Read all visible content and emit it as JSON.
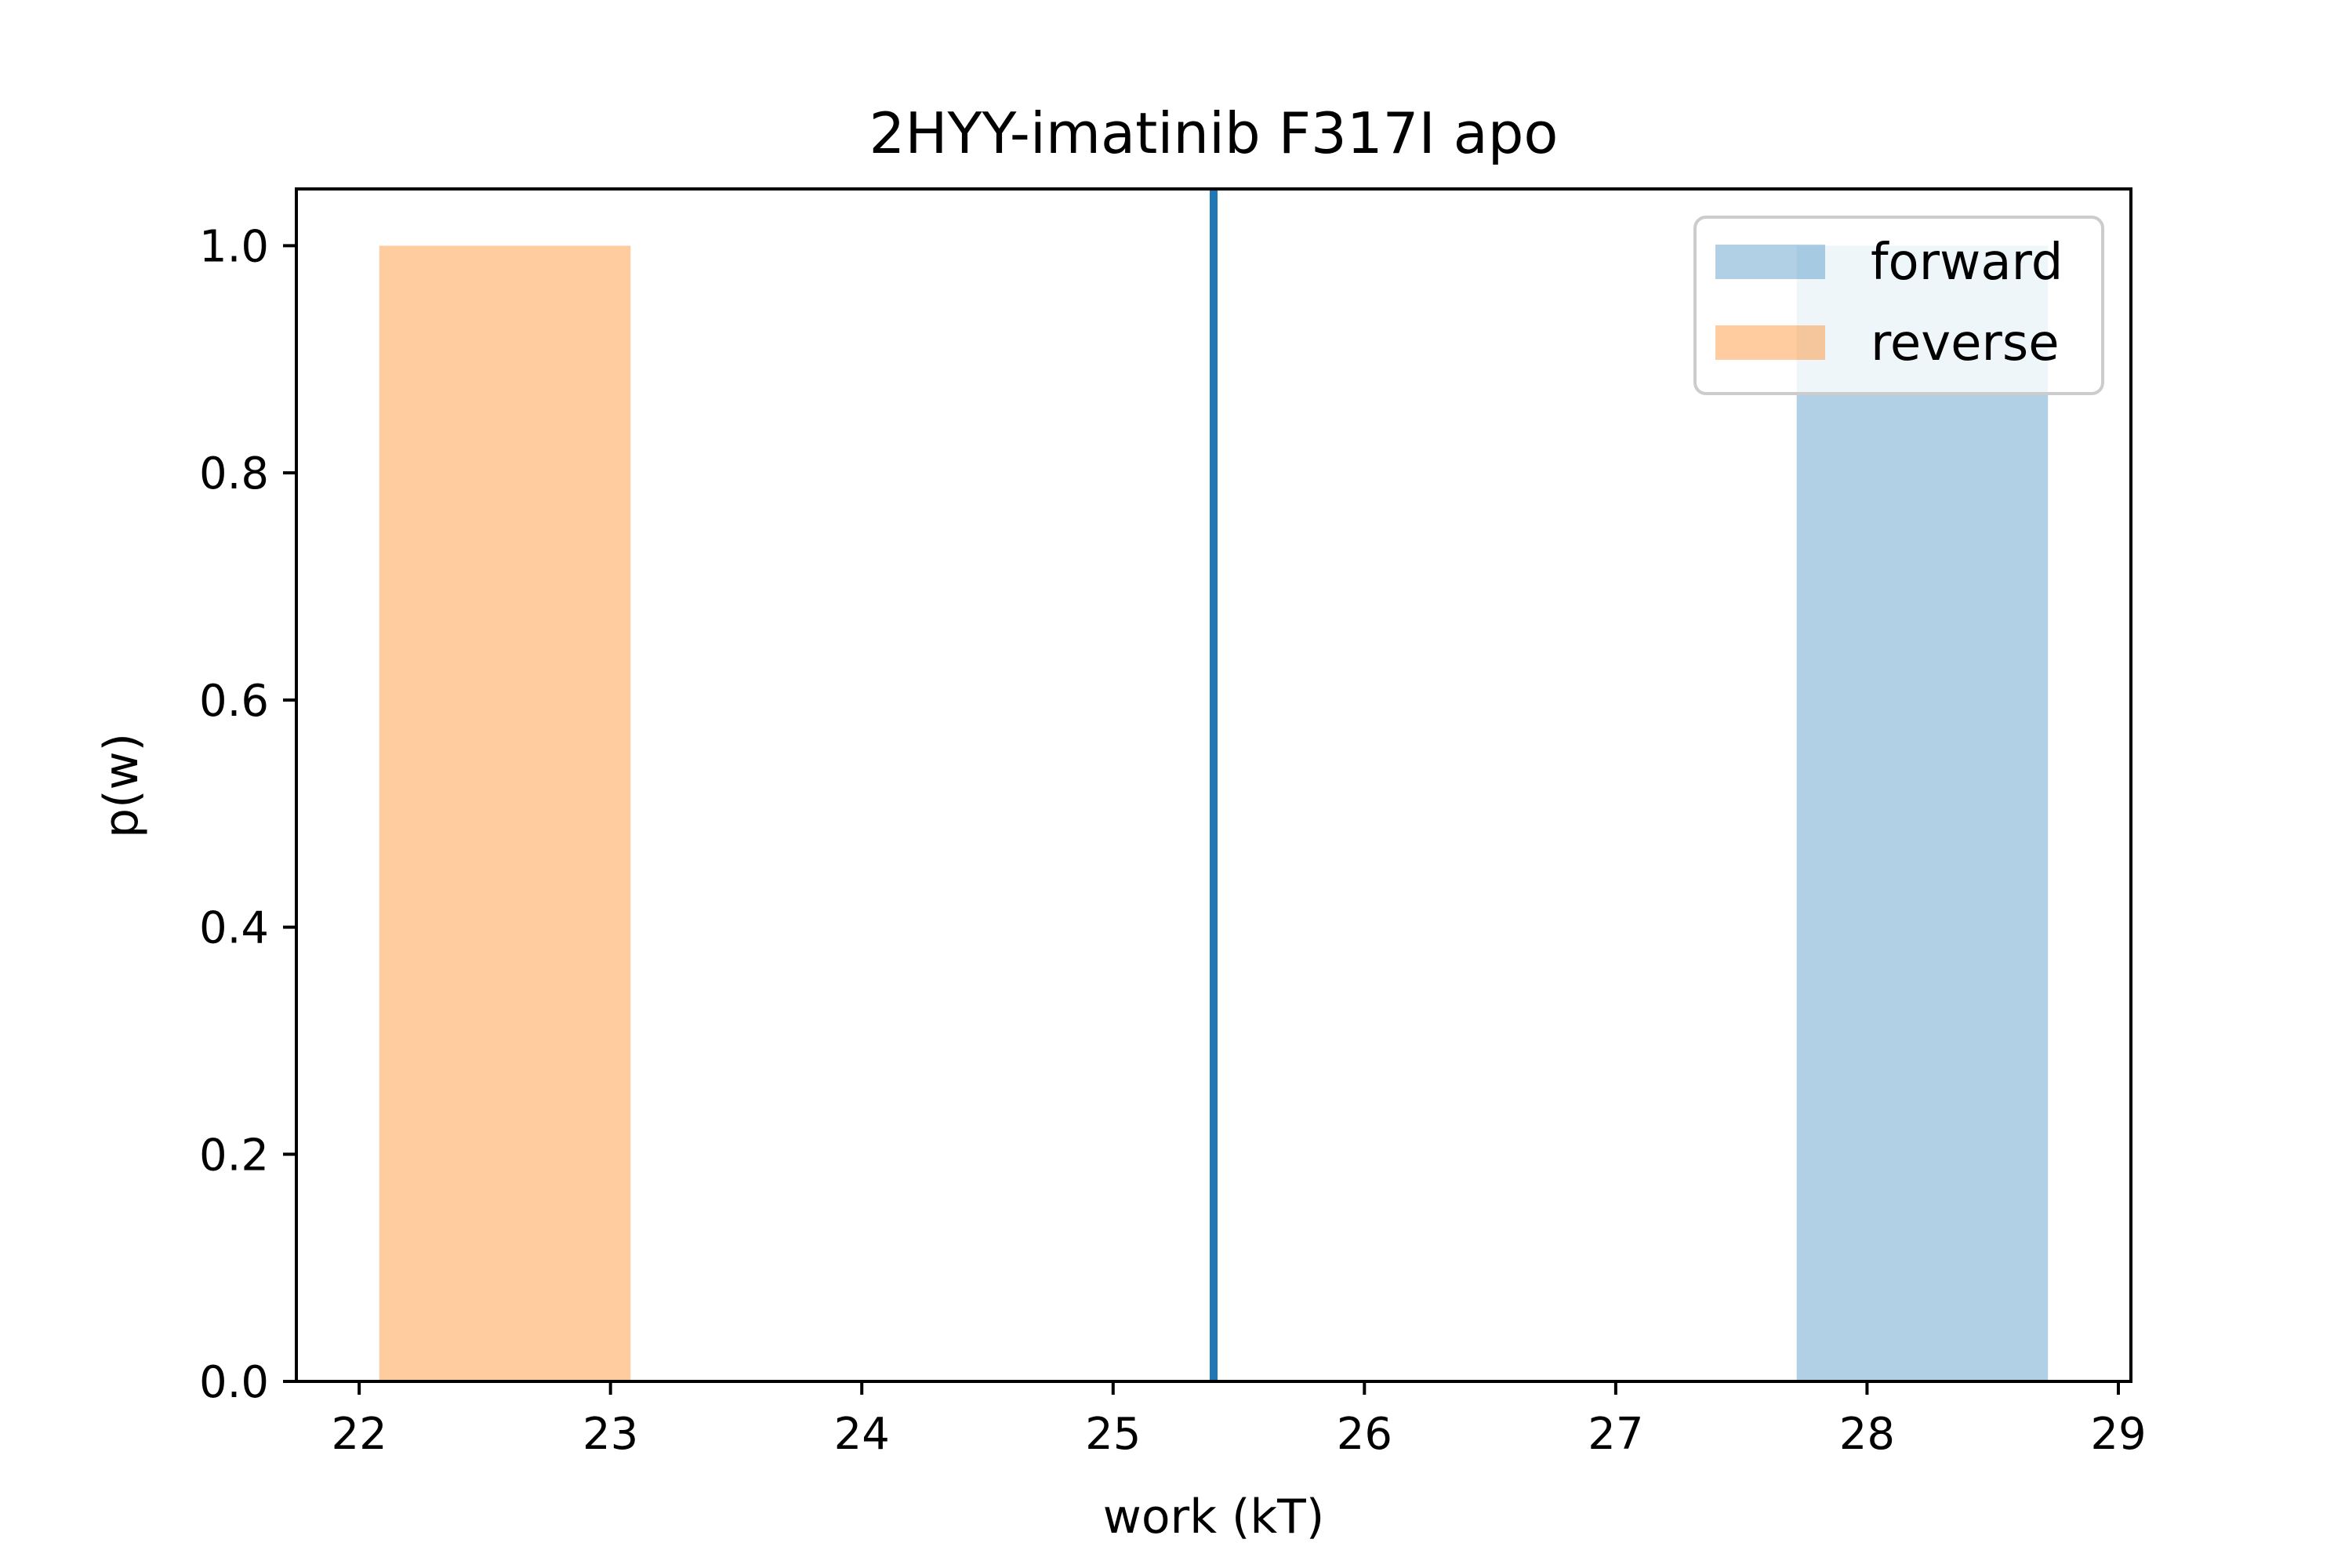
{
  "chart_data": {
    "type": "bar",
    "title": "2HYY-imatinib F317I apo",
    "xlabel": "work (kT)",
    "ylabel": "p(w)",
    "xlim": [
      21.75,
      29.05
    ],
    "ylim": [
      0.0,
      1.05
    ],
    "xticks": [
      22,
      23,
      24,
      25,
      26,
      27,
      28,
      29
    ],
    "xtick_labels": [
      "22",
      "23",
      "24",
      "25",
      "26",
      "27",
      "28",
      "29"
    ],
    "yticks": [
      0.0,
      0.2,
      0.4,
      0.6,
      0.8,
      1.0
    ],
    "ytick_labels": [
      "0.0",
      "0.2",
      "0.4",
      "0.6",
      "0.8",
      "1.0"
    ],
    "grid": false,
    "legend_position": "upper right",
    "series": [
      {
        "name": "forward",
        "color": "#1f77b4",
        "opacity": 0.35,
        "bins": [
          {
            "x0": 27.72,
            "x1": 28.72,
            "value": 1.0
          }
        ]
      },
      {
        "name": "reverse",
        "color": "#ff7f0e",
        "opacity": 0.4,
        "bins": [
          {
            "x0": 22.08,
            "x1": 23.08,
            "value": 1.0
          }
        ]
      }
    ],
    "vertical_line": {
      "x": 25.4,
      "color": "#1f77b4"
    }
  }
}
